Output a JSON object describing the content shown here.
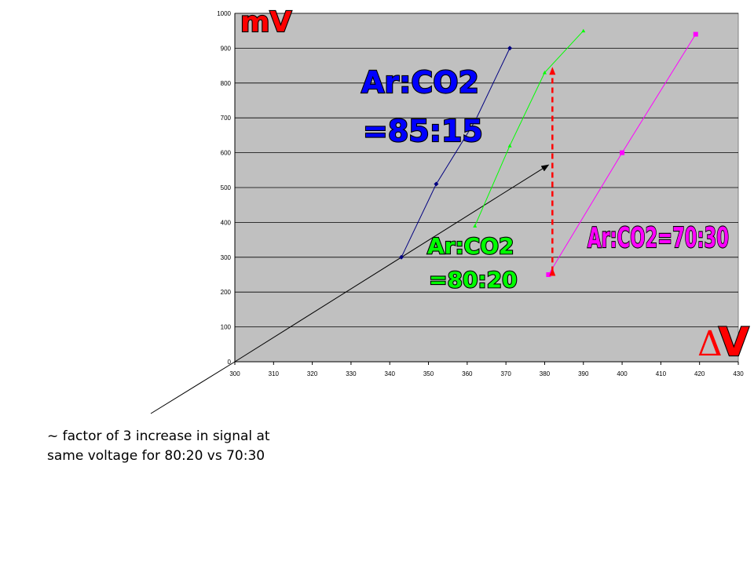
{
  "chart_data": {
    "type": "line",
    "xlim": [
      300,
      430
    ],
    "ylim": [
      0,
      1000
    ],
    "x_ticks": [
      "300",
      "310",
      "320",
      "330",
      "340",
      "350",
      "360",
      "370",
      "380",
      "390",
      "400",
      "410",
      "420",
      "430"
    ],
    "y_ticks": [
      "0",
      "100",
      "200",
      "300",
      "400",
      "500",
      "600",
      "700",
      "800",
      "900",
      "1000"
    ],
    "grid": "horizontal",
    "plot_background": "#c0c0c0",
    "series": [
      {
        "color": "#000080",
        "marker": "diamond",
        "x": [
          343,
          352,
          362,
          371
        ],
        "y": [
          300,
          510,
          690,
          900
        ]
      },
      {
        "color": "#00ff00",
        "marker": "triangle",
        "x": [
          362,
          371,
          380,
          390
        ],
        "y": [
          390,
          620,
          830,
          950
        ]
      },
      {
        "color": "#ff00ff",
        "marker": "square",
        "x": [
          381,
          400,
          419
        ],
        "y": [
          250,
          600,
          940
        ]
      }
    ],
    "annotations": {
      "y_unit": "mV",
      "x_unit_symbol": "Δ",
      "x_unit_letter": "V",
      "label_85_line1": "Ar:CO2",
      "label_85_line2": "=85:15",
      "label_80_line1": "Ar:CO2",
      "label_80_line2": "=80:20",
      "label_70": "Ar:CO2=70:30"
    }
  },
  "colors": {
    "label_85": "#0000ff",
    "label_80": "#00ff00",
    "label_70": "#ff00ff",
    "units": "#ff0000",
    "arrow_dashed": "#ff0000"
  },
  "note_text": "~ factor of 3 increase in signal at same voltage for 80:20 vs 70:30"
}
